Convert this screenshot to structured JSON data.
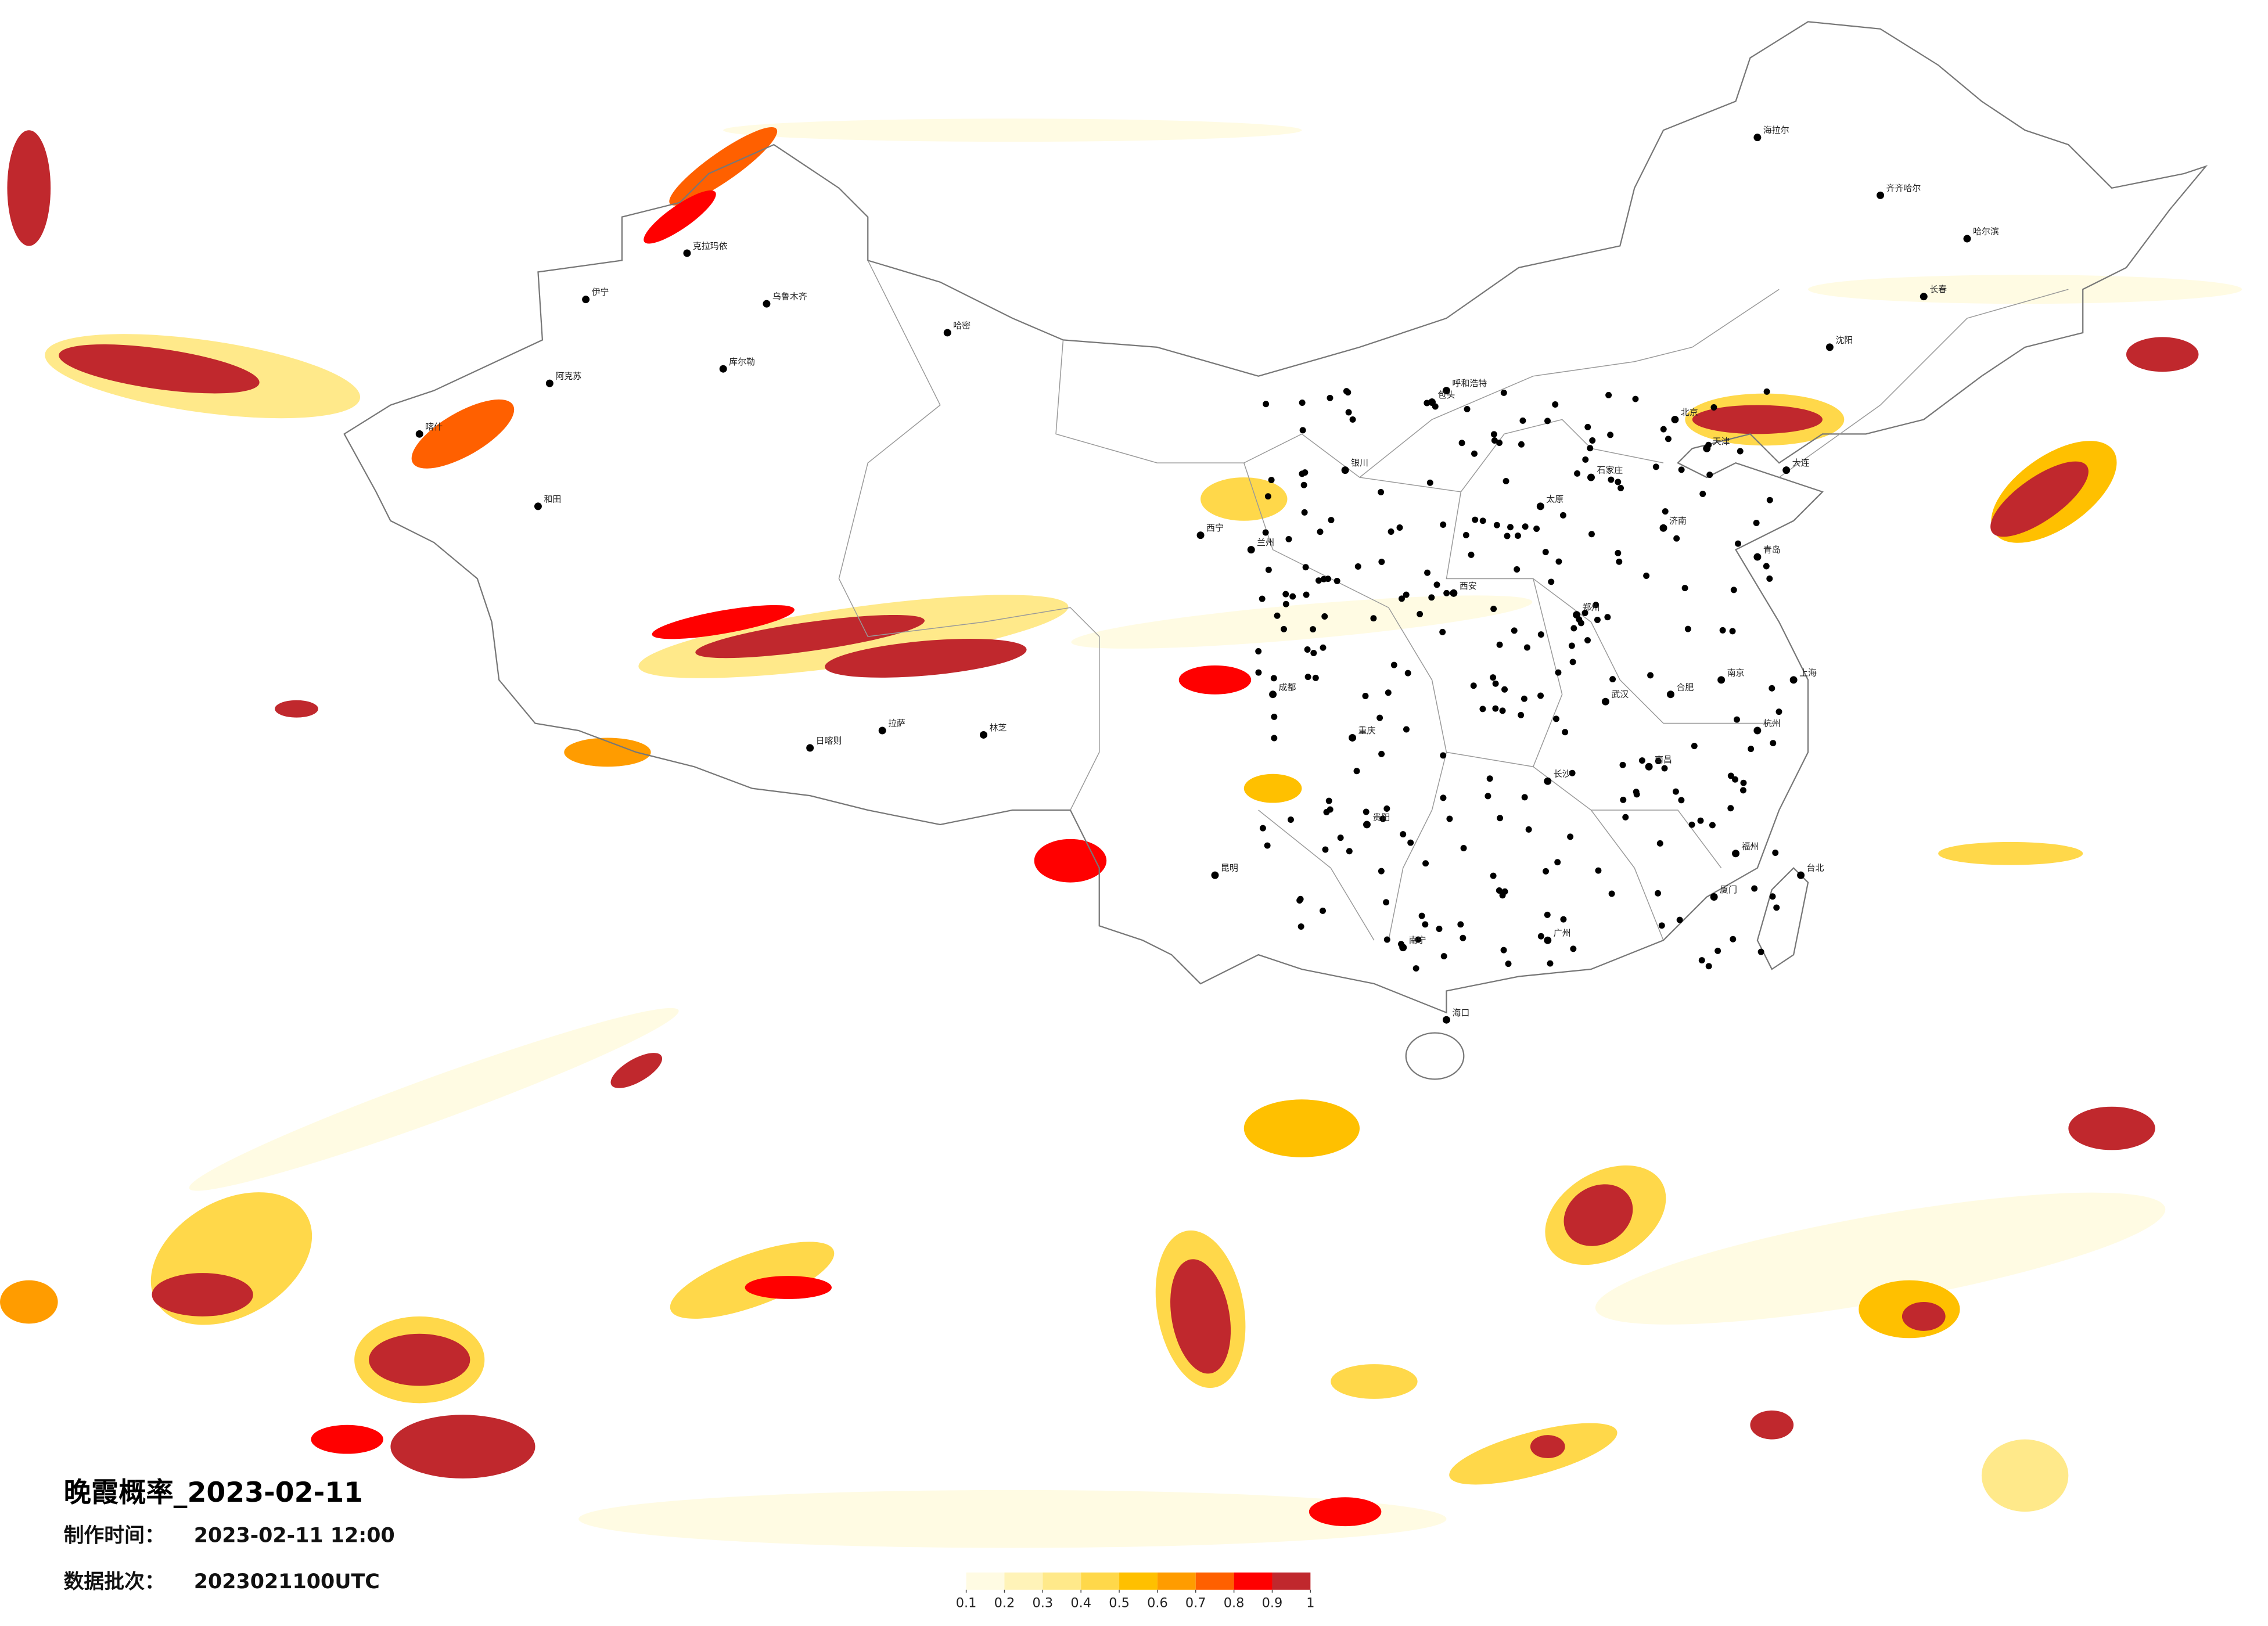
{
  "title": "晚霞概率_2023-02-11",
  "info": [
    {
      "label": "制作时间：",
      "value": "2023-02-11 12:00"
    },
    {
      "label": "数据批次：",
      "value": "2023021100UTC"
    }
  ],
  "colorbar": {
    "colors": [
      "#fffbe3",
      "#fff3b8",
      "#ffe98a",
      "#ffd84a",
      "#ffc000",
      "#ff9c00",
      "#ff6000",
      "#ff0000",
      "#c0282d"
    ],
    "ticks": [
      0.1,
      0.2,
      0.3,
      0.4,
      0.5,
      0.6,
      0.7,
      0.8,
      0.9,
      1
    ]
  },
  "cities": [
    "乌鲁木齐",
    "克拉玛依",
    "伊宁",
    "阿克苏",
    "库尔勒",
    "哈密",
    "和田",
    "喀什",
    "日喀则",
    "拉萨",
    "林芝",
    "西宁",
    "兰州",
    "银川",
    "呼和浩特",
    "包头",
    "北京",
    "天津",
    "石家庄",
    "太原",
    "西安",
    "成都",
    "重庆",
    "贵阳",
    "昆明",
    "南宁",
    "广州",
    "海口",
    "长沙",
    "武汉",
    "南昌",
    "福州",
    "杭州",
    "上海",
    "南京",
    "合肥",
    "郑州",
    "济南",
    "沈阳",
    "长春",
    "哈尔滨",
    "齐齐哈尔",
    "海拉尔",
    "台北",
    "大连",
    "青岛",
    "厦门"
  ]
}
